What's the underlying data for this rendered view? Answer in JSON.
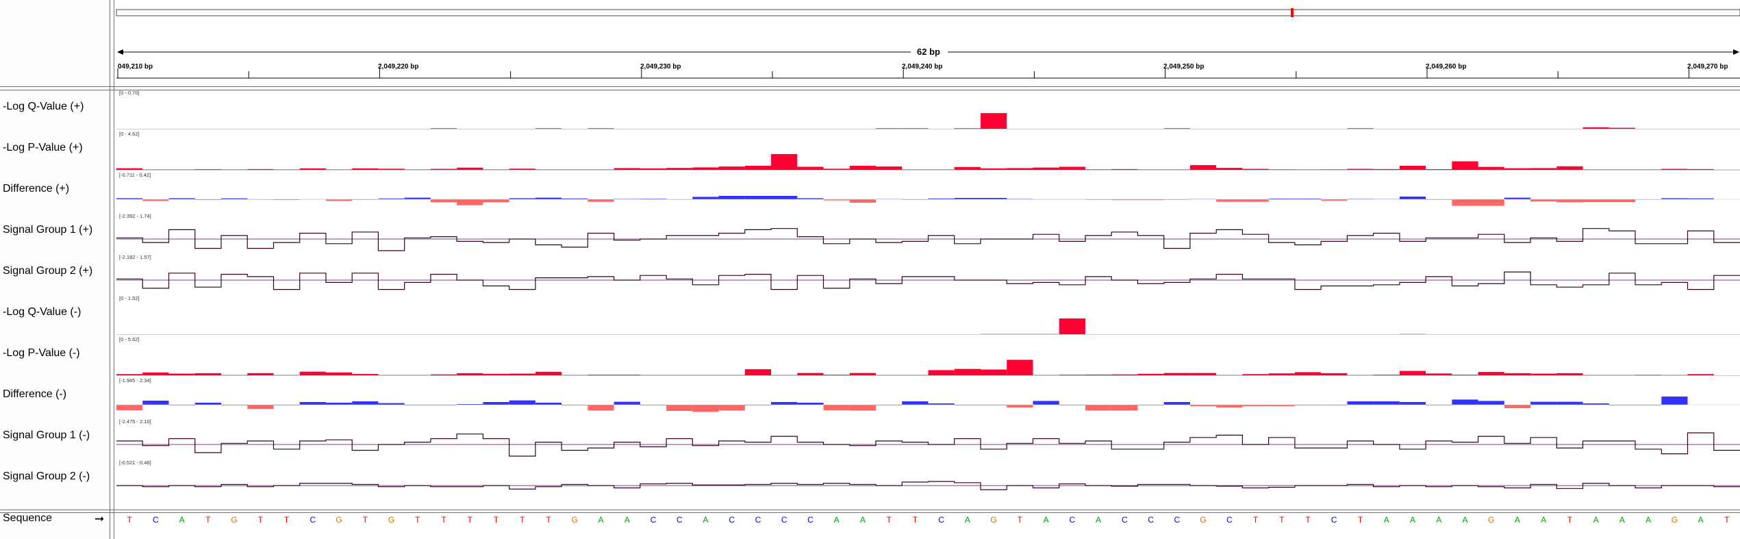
{
  "window": {
    "title": ""
  },
  "ruler": {
    "span_label": "62 bp",
    "tick_labels": [
      "049,210 bp",
      "2,049,220 bp",
      "2,049,230 bp",
      "2,049,240 bp",
      "2,049,250 bp",
      "2,049,260 bp",
      "2,049,270 bp"
    ],
    "minor_tick_fraction_positions": "none"
  },
  "tracks": [
    {
      "name": "-Log Q-Value (+)",
      "range": "[0 - 0.70]",
      "kind": "bar",
      "color": "#ff0033",
      "values": [
        0,
        0,
        0,
        0,
        0,
        0,
        0,
        0,
        0,
        0,
        0,
        0,
        0.01,
        0,
        0,
        0,
        0.01,
        0,
        0.01,
        0,
        0,
        0,
        0,
        0,
        0,
        0,
        0,
        0,
        0,
        0.01,
        0.01,
        0,
        0.01,
        0.32,
        0,
        0,
        0,
        0,
        0,
        0,
        0.01,
        0,
        0,
        0,
        0,
        0,
        0,
        0.01,
        0,
        0,
        0,
        0,
        0,
        0,
        0,
        0,
        0.03,
        0.02,
        0,
        0,
        0,
        0
      ]
    },
    {
      "name": "-Log P-Value (+)",
      "range": "[0 - 4.62]",
      "kind": "bar",
      "color": "#ff0033",
      "values": [
        0.22,
        0.05,
        0.05,
        0.08,
        0.05,
        0.1,
        0.05,
        0.2,
        0.05,
        0.2,
        0.15,
        0.05,
        0.13,
        0.3,
        0.05,
        0.16,
        0.05,
        0.05,
        0.05,
        0.24,
        0.2,
        0.26,
        0.33,
        0.45,
        0.55,
        2.13,
        0.42,
        0.15,
        0.55,
        0.45,
        0.05,
        0.05,
        0.38,
        0.2,
        0.24,
        0.31,
        0.42,
        0.06,
        0.1,
        0.05,
        0.05,
        0.64,
        0.27,
        0.13,
        0.06,
        0.05,
        0.06,
        0.13,
        0.1,
        0.55,
        0.09,
        1.15,
        0.4,
        0.22,
        0.24,
        0.48,
        0.05,
        0.05,
        0.05,
        0.13,
        0.1,
        0.02
      ]
    },
    {
      "name": "Difference (+)",
      "range": "[-0.711 - 0.42]",
      "kind": "diff",
      "pos_color": "#3333ff",
      "neg_color": "#ff6666",
      "values": [
        0.08,
        -0.12,
        0.08,
        -0.05,
        0.07,
        -0.03,
        -0.05,
        -0.02,
        -0.12,
        -0.04,
        0.06,
        0.12,
        -0.22,
        -0.43,
        -0.22,
        0.08,
        0.12,
        0.06,
        -0.18,
        0.03,
        0.04,
        -0.03,
        0.18,
        0.25,
        0.25,
        0.25,
        0.08,
        -0.08,
        -0.25,
        0.02,
        -0.04,
        0.06,
        0.1,
        0.1,
        0.03,
        -0.02,
        -0.02,
        -0.04,
        -0.06,
        -0.06,
        -0.04,
        0.02,
        -0.18,
        -0.18,
        0.05,
        0.05,
        -0.1,
        0.03,
        0.02,
        0.2,
        -0.04,
        -0.48,
        -0.48,
        0.12,
        -0.16,
        -0.22,
        -0.2,
        -0.2,
        -0.03,
        0.08,
        0.07,
        0.0
      ]
    },
    {
      "name": "Signal Group 1 (+)",
      "range": "[-2.392 - 1.74]",
      "kind": "line",
      "color": "#330022",
      "values": [
        0.1,
        -0.3,
        0.8,
        -0.8,
        0.3,
        -0.8,
        -0.3,
        0.5,
        -0.4,
        0.6,
        -1.0,
        0.1,
        0.2,
        -0.2,
        -0.3,
        0.0,
        -0.5,
        -0.7,
        0.5,
        -0.1,
        0.0,
        0.3,
        0.3,
        0.5,
        0.8,
        0.9,
        0.2,
        -0.4,
        0.0,
        -0.3,
        -0.2,
        0.3,
        -0.4,
        0.0,
        0.0,
        0.4,
        -0.2,
        0.3,
        0.6,
        0.3,
        -0.8,
        0.5,
        0.8,
        0.4,
        -0.3,
        -0.5,
        -0.2,
        0.3,
        0.5,
        -0.2,
        0.1,
        0.1,
        0.4,
        -0.3,
        0.1,
        -0.2,
        0.9,
        0.7,
        -0.4,
        -0.4,
        0.7,
        -0.3
      ]
    },
    {
      "name": "Signal Group 2 (+)",
      "range": "[-2.182 - 1.57]",
      "kind": "line",
      "color": "#330022",
      "values": [
        0.1,
        -0.7,
        0.6,
        -0.6,
        0.5,
        0.3,
        -0.8,
        0.6,
        -0.2,
        0.6,
        -0.8,
        -0.2,
        0.5,
        0.0,
        -0.5,
        -0.8,
        0.2,
        0.2,
        0.3,
        0.0,
        0.4,
        0.1,
        -0.4,
        0.4,
        0.5,
        -0.8,
        0.4,
        -0.7,
        0.1,
        -0.3,
        0.3,
        0.3,
        0.0,
        0.0,
        -0.3,
        -0.2,
        -0.4,
        0.3,
        0.0,
        -0.3,
        -0.2,
        0.1,
        0.5,
        0.1,
        0.1,
        -0.8,
        -0.5,
        -0.5,
        -0.4,
        -0.2,
        0.3,
        -0.5,
        -0.3,
        0.7,
        -0.4,
        -0.6,
        -0.4,
        0.6,
        -0.4,
        -0.2,
        -0.8,
        0.4
      ]
    },
    {
      "name": "-Log Q-Value (-)",
      "range": "[0 - 1.52]",
      "kind": "bar",
      "color": "#ff0033",
      "values": [
        0,
        0,
        0,
        0,
        0,
        0,
        0,
        0,
        0,
        0,
        0,
        0,
        0,
        0,
        0,
        0,
        0,
        0,
        0,
        0,
        0,
        0,
        0,
        0,
        0,
        0,
        0,
        0,
        0,
        0,
        0,
        0,
        0,
        0.01,
        0.01,
        0.01,
        0.7,
        0,
        0,
        0,
        0,
        0,
        0,
        0,
        0,
        0,
        0,
        0,
        0,
        0.01,
        0,
        0,
        0,
        0,
        0,
        0,
        0,
        0,
        0,
        0,
        0,
        0
      ]
    },
    {
      "name": "-Log P-Value (-)",
      "range": "[0 - 5.62]",
      "kind": "bar",
      "color": "#ff0033",
      "values": [
        0.2,
        0.47,
        0.28,
        0.35,
        0.05,
        0.36,
        0.05,
        0.6,
        0.47,
        0.22,
        0.05,
        0.05,
        0.15,
        0.35,
        0.25,
        0.28,
        0.58,
        0.05,
        0.1,
        0.1,
        0.05,
        0.05,
        0.05,
        0.05,
        1.0,
        0.05,
        0.38,
        0.1,
        0.38,
        0.05,
        0.05,
        0.85,
        1.05,
        0.95,
        2.55,
        0.05,
        0.1,
        0.12,
        0.15,
        0.25,
        0.38,
        0.38,
        0.05,
        0.2,
        0.32,
        0.52,
        0.35,
        0.05,
        0.1,
        0.72,
        0.3,
        0.1,
        0.55,
        0.35,
        0.28,
        0.35,
        0.05,
        0.05,
        0.08,
        0.05,
        0.2,
        0.0
      ]
    },
    {
      "name": "Difference (-)",
      "range": "[-1.945 - 2.34]",
      "kind": "diff",
      "pos_color": "#3333ff",
      "neg_color": "#ff6666",
      "values": [
        -0.4,
        0.3,
        -0.05,
        0.15,
        -0.05,
        -0.3,
        -0.05,
        0.2,
        0.15,
        0.25,
        0.12,
        -0.05,
        -0.05,
        0.05,
        0.2,
        0.32,
        0.15,
        -0.05,
        -0.42,
        0.22,
        -0.05,
        -0.45,
        -0.52,
        -0.42,
        -0.05,
        0.2,
        0.15,
        -0.4,
        -0.42,
        -0.05,
        0.25,
        0.1,
        -0.05,
        -0.05,
        -0.2,
        0.28,
        -0.05,
        -0.42,
        -0.42,
        -0.05,
        0.2,
        -0.1,
        -0.2,
        -0.1,
        -0.1,
        -0.05,
        -0.05,
        0.25,
        0.25,
        0.2,
        -0.05,
        0.38,
        0.28,
        -0.25,
        0.22,
        0.22,
        0.1,
        -0.05,
        -0.05,
        0.6,
        0.0,
        0.0
      ]
    },
    {
      "name": "Signal Group 1 (-)",
      "range": "[-2.475 - 2.10]",
      "kind": "line",
      "color": "#330022",
      "values": [
        0.3,
        -0.1,
        0.5,
        -0.7,
        0.1,
        0.3,
        -0.4,
        0.3,
        0.4,
        -0.5,
        0.0,
        0.2,
        0.5,
        0.9,
        0.5,
        -1.0,
        0.2,
        -0.5,
        -0.3,
        0.2,
        -0.2,
        0.5,
        -0.1,
        0.3,
        0.2,
        0.7,
        0.2,
        0.0,
        -0.1,
        0.3,
        0.2,
        0.0,
        0.5,
        -0.4,
        0.1,
        0.5,
        0.1,
        0.3,
        -0.4,
        -0.4,
        0.2,
        0.6,
        0.8,
        0.0,
        0.6,
        -0.3,
        -0.3,
        0.3,
        0.0,
        -0.4,
        0.3,
        0.2,
        0.7,
        0.1,
        0.6,
        -0.3,
        0.3,
        0.3,
        -0.4,
        -0.8,
        1.0,
        -0.5
      ]
    },
    {
      "name": "Signal Group 2 (-)",
      "range": "[-0.521 - 0.46]",
      "kind": "line",
      "color": "#330022",
      "values": [
        0.0,
        -0.1,
        0.0,
        -0.1,
        0.1,
        -0.1,
        0.0,
        0.2,
        0.2,
        0.1,
        -0.1,
        0.0,
        -0.1,
        -0.1,
        0.0,
        -0.3,
        -0.1,
        0.1,
        0.0,
        -0.2,
        0.15,
        0.2,
        0.05,
        0.05,
        0.1,
        0.2,
        0.1,
        0.2,
        0.1,
        0.0,
        0.3,
        0.35,
        0.25,
        -0.35,
        0.0,
        -0.2,
        0.15,
        0.0,
        -0.05,
        0.1,
        0.1,
        0.0,
        -0.05,
        -0.2,
        -0.15,
        0.0,
        0.0,
        0.1,
        -0.1,
        0.0,
        -0.1,
        0.0,
        -0.1,
        -0.2,
        0.1,
        -0.25,
        0.2,
        0.0,
        -0.2,
        0.0,
        0.0,
        -0.1
      ]
    }
  ],
  "sequence": {
    "label": "Sequence",
    "arrow_icon": "right-arrow-icon",
    "bases": [
      "T",
      "C",
      "A",
      "T",
      "G",
      "T",
      "T",
      "C",
      "G",
      "T",
      "G",
      "T",
      "T",
      "T",
      "T",
      "T",
      "T",
      "G",
      "A",
      "A",
      "C",
      "C",
      "A",
      "C",
      "C",
      "C",
      "C",
      "A",
      "A",
      "T",
      "T",
      "C",
      "A",
      "G",
      "T",
      "A",
      "C",
      "A",
      "C",
      "C",
      "C",
      "G",
      "C",
      "T",
      "T",
      "T",
      "C",
      "T",
      "A",
      "A",
      "A",
      "A",
      "G",
      "A",
      "A",
      "T",
      "A",
      "A",
      "A",
      "G",
      "A",
      "T"
    ],
    "colors": {
      "A": "#00a000",
      "C": "#0000ee",
      "G": "#d17105",
      "T": "#ee0000"
    }
  },
  "locus_marker_color": "#ff0000"
}
